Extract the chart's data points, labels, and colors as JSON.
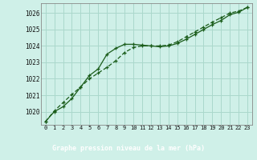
{
  "title": "Graphe pression niveau de la mer (hPa)",
  "bg_color": "#cff0e8",
  "title_bg": "#2e7d32",
  "title_color": "#ffffff",
  "grid_color": "#aad8cc",
  "line_color1": "#1a5c1a",
  "line_color2": "#1a5c1a",
  "x_labels": [
    "0",
    "1",
    "2",
    "3",
    "4",
    "5",
    "6",
    "7",
    "8",
    "9",
    "10",
    "11",
    "12",
    "13",
    "14",
    "15",
    "16",
    "17",
    "18",
    "19",
    "20",
    "21",
    "22",
    "23"
  ],
  "ylim": [
    1019.2,
    1026.6
  ],
  "yticks": [
    1020,
    1021,
    1022,
    1023,
    1024,
    1025,
    1026
  ],
  "series1": [
    1019.4,
    1020.0,
    1020.3,
    1020.8,
    1021.5,
    1022.2,
    1022.6,
    1023.5,
    1023.85,
    1024.1,
    1024.1,
    1024.05,
    1024.0,
    1023.95,
    1024.0,
    1024.15,
    1024.4,
    1024.7,
    1025.0,
    1025.3,
    1025.55,
    1025.9,
    1026.05,
    1026.35
  ],
  "series2": [
    1019.4,
    1020.05,
    1020.55,
    1021.05,
    1021.5,
    1022.0,
    1022.35,
    1022.7,
    1023.1,
    1023.6,
    1023.9,
    1024.0,
    1024.0,
    1024.0,
    1024.05,
    1024.25,
    1024.55,
    1024.85,
    1025.15,
    1025.45,
    1025.72,
    1026.0,
    1026.12,
    1026.35
  ],
  "tick_fontsize": 5.5,
  "xlabel_fontsize": 6.0
}
